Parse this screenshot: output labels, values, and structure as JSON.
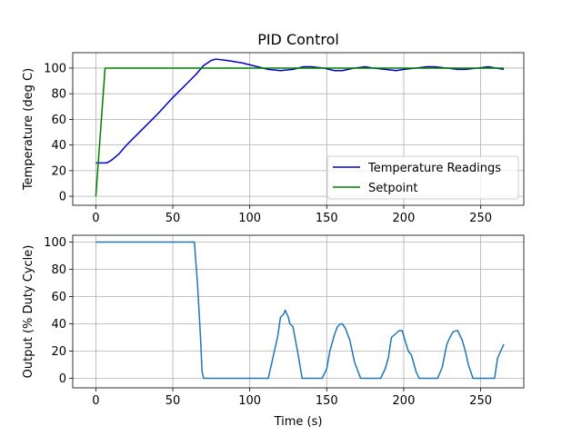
{
  "chart_data": [
    {
      "type": "line",
      "title": "PID Control",
      "xlabel": "",
      "ylabel": "Temperature (deg C)",
      "xlim": [
        -15,
        278
      ],
      "ylim": [
        -7,
        112
      ],
      "xticks": [
        0,
        50,
        100,
        150,
        200,
        250
      ],
      "yticks": [
        0,
        20,
        40,
        60,
        80,
        100
      ],
      "grid": true,
      "legend_position": "lower-right",
      "series": [
        {
          "name": "Temperature Readings",
          "color": "#0000cc",
          "x": [
            0,
            5,
            7,
            10,
            15,
            20,
            30,
            40,
            50,
            60,
            65,
            70,
            75,
            78,
            85,
            95,
            105,
            112,
            120,
            128,
            135,
            140,
            148,
            155,
            160,
            168,
            175,
            180,
            188,
            195,
            200,
            208,
            215,
            220,
            228,
            235,
            240,
            248,
            255,
            260,
            265
          ],
          "y": [
            26,
            26,
            26,
            28,
            33,
            40,
            52,
            64,
            77,
            89,
            95,
            102,
            106,
            107,
            106,
            104,
            101,
            99,
            98,
            99,
            101,
            101,
            100,
            98,
            98,
            100,
            101,
            100,
            99,
            98,
            99,
            100,
            101,
            101,
            100,
            99,
            99,
            100,
            101,
            100,
            99
          ]
        },
        {
          "name": "Setpoint",
          "color": "#008000",
          "x": [
            0,
            6,
            265
          ],
          "y": [
            0,
            100,
            100
          ]
        }
      ]
    },
    {
      "type": "line",
      "title": "",
      "xlabel": "Time (s)",
      "ylabel": "Output (% Duty Cycle)",
      "xlim": [
        -15,
        278
      ],
      "ylim": [
        -7,
        105
      ],
      "xticks": [
        0,
        50,
        100,
        150,
        200,
        250
      ],
      "yticks": [
        0,
        20,
        40,
        60,
        80,
        100
      ],
      "grid": true,
      "series": [
        {
          "color": "#1f77b4",
          "x": [
            0,
            64,
            66,
            68,
            69,
            70,
            112,
            115,
            118,
            120,
            122,
            123,
            125,
            126,
            128,
            131,
            134,
            147,
            150,
            152,
            155,
            157,
            159,
            160,
            162,
            165,
            168,
            172,
            185,
            188,
            190,
            192,
            195,
            197,
            199,
            200,
            203,
            205,
            208,
            210,
            222,
            225,
            228,
            230,
            232,
            234,
            235,
            238,
            240,
            242,
            245,
            259,
            261,
            263,
            265
          ],
          "y": [
            100,
            100,
            70,
            30,
            5,
            0,
            0,
            15,
            30,
            45,
            47,
            50,
            45,
            40,
            38,
            20,
            0,
            0,
            7,
            20,
            32,
            38,
            40,
            40,
            37,
            28,
            12,
            0,
            0,
            7,
            15,
            30,
            33,
            35,
            35,
            31,
            20,
            17,
            5,
            0,
            0,
            8,
            25,
            30,
            34,
            35,
            35,
            28,
            20,
            10,
            0,
            0,
            15,
            20,
            25
          ]
        }
      ]
    }
  ]
}
